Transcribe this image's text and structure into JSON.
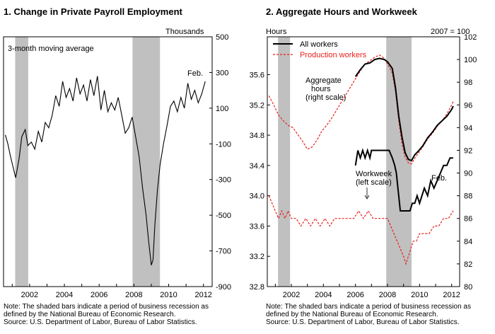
{
  "chart_data": [
    {
      "type": "line",
      "title": "1. Change in Private Payroll Employment",
      "unit_label": "Thousands",
      "annotation": "3-month moving average",
      "end_label": "Feb.",
      "x_ticks": [
        "2002",
        "2004",
        "2006",
        "2008",
        "2010",
        "2012"
      ],
      "xlim": [
        2000.5,
        2012.5
      ],
      "y_ticks": [
        "500",
        "300",
        "100",
        "-100",
        "-300",
        "-500",
        "-700",
        "-900"
      ],
      "ylim": [
        -900,
        500
      ],
      "recessions": [
        [
          2001.17,
          2001.92
        ],
        [
          2007.92,
          2009.5
        ]
      ],
      "series": [
        {
          "x": [
            2000.6,
            2000.75,
            2000.9,
            2001.05,
            2001.2,
            2001.4,
            2001.55,
            2001.75,
            2001.9,
            2002.1,
            2002.3,
            2002.5,
            2002.7,
            2002.9,
            2003.1,
            2003.3,
            2003.5,
            2003.7,
            2003.9,
            2004.1,
            2004.3,
            2004.5,
            2004.7,
            2004.9,
            2005.1,
            2005.3,
            2005.5,
            2005.7,
            2005.9,
            2006.1,
            2006.3,
            2006.5,
            2006.7,
            2006.9,
            2007.1,
            2007.3,
            2007.5,
            2007.7,
            2007.9,
            2008.1,
            2008.3,
            2008.5,
            2008.7,
            2008.85,
            2009.0,
            2009.1,
            2009.2,
            2009.35,
            2009.5,
            2009.7,
            2009.9,
            2010.1,
            2010.3,
            2010.5,
            2010.7,
            2010.9,
            2011.1,
            2011.3,
            2011.5,
            2011.7,
            2011.9,
            2012.1
          ],
          "values": [
            -50,
            -100,
            -170,
            -230,
            -290,
            -180,
            -60,
            -20,
            -110,
            -90,
            -130,
            -30,
            -90,
            20,
            -10,
            60,
            170,
            110,
            250,
            160,
            210,
            140,
            270,
            180,
            230,
            140,
            260,
            170,
            280,
            90,
            200,
            80,
            130,
            90,
            160,
            60,
            -40,
            -10,
            50,
            -60,
            -170,
            -350,
            -500,
            -650,
            -780,
            -750,
            -560,
            -360,
            -220,
            -100,
            0,
            110,
            140,
            80,
            160,
            100,
            240,
            150,
            200,
            130,
            180,
            250
          ]
        }
      ]
    },
    {
      "type": "line",
      "title": "2. Aggregate Hours and Workweek",
      "left_axis_label": "Hours",
      "right_axis_label": "2007 = 100",
      "x_ticks": [
        "2002",
        "2004",
        "2006",
        "2008",
        "2010",
        "2012"
      ],
      "xlim": [
        2000.5,
        2012.5
      ],
      "y_left_ticks": [
        "35.6",
        "35.2",
        "34.8",
        "34.4",
        "34.0",
        "33.6",
        "33.2",
        "32.8"
      ],
      "ylim_left": [
        32.8,
        36.1
      ],
      "y_right_ticks": [
        "102",
        "100",
        "98",
        "96",
        "94",
        "92",
        "90",
        "88",
        "86",
        "84",
        "82",
        "80"
      ],
      "ylim_right": [
        80,
        102
      ],
      "recessions": [
        [
          2001.17,
          2001.92
        ],
        [
          2007.92,
          2009.5
        ]
      ],
      "legend": [
        "All workers",
        "Production workers"
      ],
      "annotations": {
        "aggregate": [
          "Aggregate",
          "hours",
          "(right scale)"
        ],
        "workweek": [
          "Workweek",
          "(left scale)"
        ],
        "end_label": "Feb."
      },
      "colors": {
        "all_workers": "#000000",
        "production_workers": "#e8201c"
      },
      "series": [
        {
          "name": "All workers",
          "scale": "right",
          "x": [
            2006.0,
            2006.3,
            2006.6,
            2006.9,
            2007.2,
            2007.5,
            2007.8,
            2008.0,
            2008.3,
            2008.5,
            2008.7,
            2008.9,
            2009.1,
            2009.3,
            2009.5,
            2009.7,
            2009.9,
            2010.2,
            2010.5,
            2010.8,
            2011.1,
            2011.4,
            2011.7,
            2012.0,
            2012.1
          ],
          "values": [
            98.5,
            99.1,
            99.6,
            99.7,
            100.0,
            100.1,
            100.0,
            99.8,
            99.2,
            97.5,
            95.0,
            93.2,
            91.8,
            91.2,
            91.1,
            91.6,
            91.9,
            92.4,
            93.1,
            93.6,
            94.2,
            94.6,
            95.0,
            95.6,
            95.9
          ]
        },
        {
          "name": "Production workers",
          "scale": "right",
          "x": [
            2000.6,
            2000.9,
            2001.2,
            2001.5,
            2001.8,
            2002.1,
            2002.4,
            2002.7,
            2003.0,
            2003.3,
            2003.6,
            2003.9,
            2004.2,
            2004.5,
            2004.8,
            2005.1,
            2005.4,
            2005.7,
            2006.0,
            2006.3,
            2006.6,
            2006.9,
            2007.2,
            2007.5,
            2007.8,
            2008.0,
            2008.3,
            2008.5,
            2008.7,
            2008.9,
            2009.1,
            2009.3,
            2009.5,
            2009.7,
            2009.9,
            2010.2,
            2010.5,
            2010.8,
            2011.1,
            2011.4,
            2011.7,
            2012.0,
            2012.1
          ],
          "values": [
            96.8,
            96.0,
            95.1,
            94.6,
            94.2,
            94.0,
            93.4,
            92.8,
            92.1,
            92.3,
            92.9,
            93.7,
            94.2,
            94.8,
            95.5,
            96.2,
            96.9,
            97.6,
            98.3,
            99.0,
            99.6,
            99.9,
            100.2,
            100.4,
            100.1,
            99.6,
            98.8,
            97.2,
            94.6,
            92.6,
            91.4,
            90.9,
            90.8,
            91.3,
            91.7,
            92.3,
            93.0,
            93.5,
            94.1,
            94.6,
            95.2,
            96.0,
            96.3
          ]
        },
        {
          "name": "Workweek (all workers)",
          "scale": "left",
          "x": [
            2006.0,
            2006.15,
            2006.3,
            2006.45,
            2006.6,
            2006.75,
            2006.9,
            2007.0,
            2007.3,
            2007.6,
            2007.9,
            2008.1,
            2008.3,
            2008.45,
            2008.55,
            2008.65,
            2008.8,
            2009.0,
            2009.2,
            2009.4,
            2009.55,
            2009.7,
            2009.85,
            2010.0,
            2010.15,
            2010.3,
            2010.5,
            2010.7,
            2010.9,
            2011.1,
            2011.3,
            2011.5,
            2011.7,
            2011.9,
            2012.1
          ],
          "values": [
            34.4,
            34.6,
            34.5,
            34.6,
            34.5,
            34.6,
            34.5,
            34.6,
            34.6,
            34.6,
            34.6,
            34.6,
            34.5,
            34.4,
            34.3,
            34.1,
            33.8,
            33.8,
            33.8,
            33.8,
            33.9,
            33.9,
            34.0,
            33.9,
            34.0,
            34.1,
            34.0,
            34.2,
            34.1,
            34.2,
            34.3,
            34.4,
            34.4,
            34.5,
            34.5
          ]
        },
        {
          "name": "Workweek (production workers)",
          "scale": "left",
          "x": [
            2000.6,
            2000.8,
            2001.0,
            2001.2,
            2001.4,
            2001.6,
            2001.8,
            2002.0,
            2002.3,
            2002.6,
            2002.9,
            2003.2,
            2003.5,
            2003.8,
            2004.1,
            2004.4,
            2004.7,
            2005.0,
            2005.3,
            2005.6,
            2005.9,
            2006.2,
            2006.5,
            2006.8,
            2007.1,
            2007.4,
            2007.7,
            2008.0,
            2008.2,
            2008.4,
            2008.6,
            2008.8,
            2009.0,
            2009.15,
            2009.3,
            2009.45,
            2009.6,
            2009.8,
            2010.0,
            2010.3,
            2010.6,
            2010.9,
            2011.2,
            2011.5,
            2011.8,
            2012.1
          ],
          "values": [
            34.0,
            33.9,
            33.8,
            33.7,
            33.8,
            33.7,
            33.8,
            33.7,
            33.7,
            33.6,
            33.7,
            33.6,
            33.7,
            33.6,
            33.7,
            33.6,
            33.7,
            33.7,
            33.7,
            33.7,
            33.7,
            33.8,
            33.7,
            33.8,
            33.7,
            33.7,
            33.7,
            33.7,
            33.6,
            33.5,
            33.4,
            33.3,
            33.2,
            33.1,
            33.2,
            33.3,
            33.4,
            33.4,
            33.5,
            33.5,
            33.5,
            33.6,
            33.6,
            33.7,
            33.7,
            33.8
          ]
        }
      ]
    }
  ],
  "notes": {
    "left": [
      "Note: The shaded bars indicate a period of business recession as",
      "defined by the National Bureau of Economic Research.",
      "Source: U.S. Department of Labor, Bureau of Labor Statistics."
    ],
    "right": [
      "Note: The shaded bars indicate a period of business recession as",
      "defined by the National Bureau of Economic Research.",
      "Source: U.S. Department of Labor, Bureau of Labor Statistics."
    ]
  }
}
